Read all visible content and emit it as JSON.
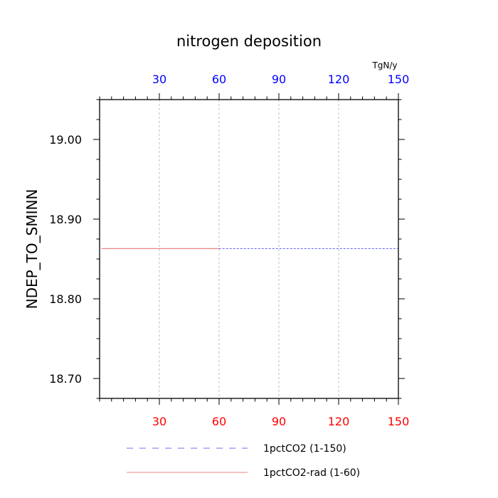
{
  "chart_data": {
    "type": "line",
    "title": "nitrogen deposition",
    "ylabel": "NDEP_TO_SMINN",
    "unit_label": "TgN/y",
    "xlim": [
      0,
      150
    ],
    "ylim": [
      18.675,
      19.05
    ],
    "x_ticks": [
      30,
      60,
      90,
      120,
      150
    ],
    "x_tick_labels": [
      "30",
      "60",
      "90",
      "120",
      "150"
    ],
    "y_ticks": [
      18.7,
      18.8,
      18.9,
      19.0
    ],
    "y_tick_labels": [
      "18.70",
      "18.80",
      "18.90",
      "19.00"
    ],
    "grid": true,
    "colors": {
      "top_axis_labels": "#0000ff",
      "bottom_axis_labels": "#ff0000"
    },
    "series": [
      {
        "name": "1pctCO2 (1-150)",
        "color": "#6e6ef5",
        "dash": "dashed",
        "x": [
          1,
          150
        ],
        "y": [
          18.863,
          18.863
        ]
      },
      {
        "name": "1pctCO2-rad (1-60)",
        "color": "#f08080",
        "dash": "solid",
        "x": [
          1,
          60
        ],
        "y": [
          18.863,
          18.863
        ]
      }
    ]
  }
}
